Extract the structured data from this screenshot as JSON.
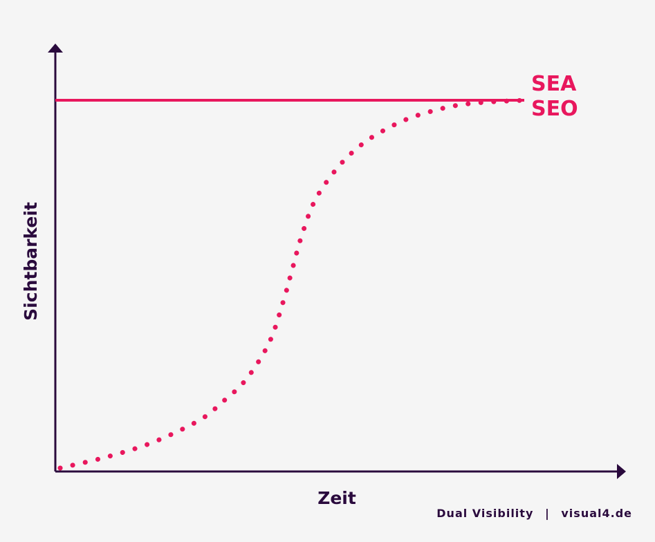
{
  "colors": {
    "axis": "#2a0a3d",
    "accent": "#e8175d",
    "background": "#f5f5f5"
  },
  "footer": {
    "brand": "Dual Visibility",
    "separator": "|",
    "site": "visual4.de"
  },
  "chart_data": {
    "type": "line",
    "title": "",
    "xlabel": "Zeit",
    "ylabel": "Sichtbarkeit",
    "xlim": [
      0,
      100
    ],
    "ylim": [
      0,
      100
    ],
    "grid": false,
    "legend": "direct-labels-right",
    "series": [
      {
        "name": "SEA",
        "style": "solid",
        "x": [
          0,
          100
        ],
        "y": [
          100,
          100
        ]
      },
      {
        "name": "SEO",
        "style": "dotted",
        "x": [
          0,
          10,
          20,
          30,
          35,
          40,
          45,
          48,
          50,
          52,
          55,
          60,
          65,
          70,
          75,
          80,
          85,
          90,
          95,
          100
        ],
        "y": [
          0,
          3,
          7,
          13,
          18,
          24,
          34,
          45,
          54,
          63,
          73,
          82,
          88,
          92,
          95,
          97,
          98.5,
          99.3,
          99.7,
          100
        ]
      }
    ]
  }
}
